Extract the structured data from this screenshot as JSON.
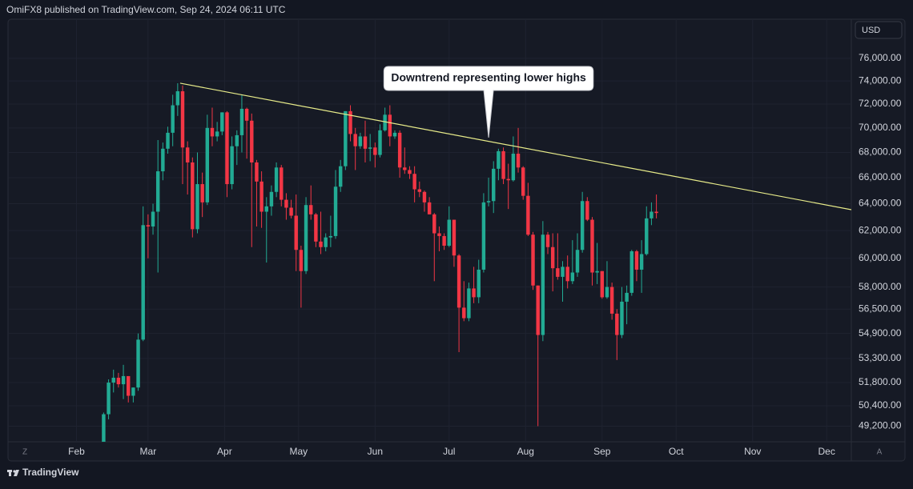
{
  "header": "OmiFX8 published on TradingView.com, Sep 24, 2024 06:11 UTC",
  "footer": "TradingView",
  "scale_buttons": [
    "Z",
    "A"
  ],
  "chart_data": {
    "type": "candlestick",
    "currency": "USD",
    "up_color": "#22ab94",
    "down_color": "#f23645",
    "log_scale": true,
    "grid": true,
    "xlim": [
      1,
      346
    ],
    "xticks": [
      {
        "value": 32,
        "label": "Feb"
      },
      {
        "value": 61,
        "label": "Mar"
      },
      {
        "value": 92,
        "label": "Apr"
      },
      {
        "value": 122,
        "label": "May"
      },
      {
        "value": 153,
        "label": "Jun"
      },
      {
        "value": 183,
        "label": "Jul"
      },
      {
        "value": 214,
        "label": "Aug"
      },
      {
        "value": 245,
        "label": "Sep"
      },
      {
        "value": 275,
        "label": "Oct"
      },
      {
        "value": 306,
        "label": "Nov"
      },
      {
        "value": 336,
        "label": "Dec"
      }
    ],
    "ylim": [
      48300,
      79600
    ],
    "yticks": [
      {
        "value": 76000,
        "label": "76,000.00"
      },
      {
        "value": 74000,
        "label": "74,000.00"
      },
      {
        "value": 72000,
        "label": "72,000.00"
      },
      {
        "value": 70000,
        "label": "70,000.00"
      },
      {
        "value": 68000,
        "label": "68,000.00"
      },
      {
        "value": 66000,
        "label": "66,000.00"
      },
      {
        "value": 64000,
        "label": "64,000.00"
      },
      {
        "value": 62000,
        "label": "62,000.00"
      },
      {
        "value": 60000,
        "label": "60,000.00"
      },
      {
        "value": 58000,
        "label": "58,000.00"
      },
      {
        "value": 56500,
        "label": "56,500.00"
      },
      {
        "value": 54900,
        "label": "54,900.00"
      },
      {
        "value": 53300,
        "label": "53,300.00"
      },
      {
        "value": 51800,
        "label": "51,800.00"
      },
      {
        "value": 50400,
        "label": "50,400.00"
      },
      {
        "value": 49200,
        "label": "49,200.00"
      }
    ],
    "x": [
      43,
      45,
      47,
      49,
      51,
      53,
      55,
      57,
      59,
      61,
      63,
      65,
      67,
      69,
      71,
      73,
      75,
      77,
      79,
      81,
      83,
      85,
      87,
      89,
      91,
      93,
      95,
      97,
      99,
      101,
      103,
      105,
      107,
      109,
      111,
      113,
      115,
      117,
      119,
      121,
      123,
      125,
      127,
      129,
      131,
      133,
      135,
      137,
      139,
      141,
      143,
      145,
      147,
      149,
      151,
      153,
      155,
      157,
      159,
      161,
      163,
      165,
      167,
      169,
      171,
      173,
      175,
      177,
      179,
      181,
      183,
      185,
      187,
      189,
      191,
      193,
      195,
      197,
      199,
      201,
      203,
      205,
      207,
      209,
      211,
      213,
      215,
      217,
      219,
      221,
      223,
      225,
      227,
      229,
      231,
      233,
      235,
      237,
      239,
      241,
      243,
      245,
      247,
      249,
      251,
      253,
      255,
      257,
      259,
      261,
      263,
      265,
      267
    ],
    "open": [
      48300,
      49900,
      51800,
      52100,
      51700,
      52200,
      51000,
      51500,
      54500,
      62400,
      62300,
      63400,
      66500,
      68300,
      69600,
      71900,
      73100,
      68400,
      67200,
      62100,
      65500,
      64100,
      70000,
      69300,
      69700,
      71300,
      65500,
      68500,
      69400,
      71600,
      70600,
      67200,
      65700,
      63400,
      63800,
      64900,
      66800,
      64300,
      63700,
      63100,
      60600,
      59100,
      63900,
      63200,
      61200,
      60800,
      61500,
      61600,
      65300,
      66900,
      71400,
      69500,
      68500,
      69300,
      68300,
      68400,
      67800,
      69800,
      71100,
      69300,
      69600,
      66800,
      66600,
      66300,
      65100,
      64900,
      64100,
      63200,
      61800,
      61600,
      60900,
      62800,
      60200,
      56600,
      55900,
      57900,
      57300,
      59200,
      64100,
      64200,
      66700,
      68100,
      65900,
      65800,
      67900,
      66800,
      64600,
      61700,
      58100,
      54800,
      61700,
      60800,
      59300,
      58700,
      59400,
      58400,
      59000,
      60600,
      64200,
      62800,
      59000,
      59100,
      57300,
      58000,
      56200,
      54800,
      57000,
      57600,
      60500,
      59200,
      60300,
      62900,
      63400
    ],
    "high": [
      50000,
      52000,
      52600,
      52400,
      52900,
      52200,
      51500,
      54900,
      63800,
      63200,
      64000,
      69000,
      68800,
      70100,
      72800,
      73800,
      73600,
      68900,
      67600,
      68000,
      66400,
      71100,
      71700,
      70500,
      71300,
      71400,
      69300,
      69800,
      72800,
      71700,
      71200,
      67400,
      66500,
      64500,
      65400,
      67200,
      67000,
      64800,
      64300,
      64700,
      60900,
      64500,
      65400,
      63300,
      63400,
      61800,
      63100,
      66600,
      67400,
      71400,
      71900,
      70000,
      69600,
      70600,
      69500,
      68800,
      70300,
      71700,
      71900,
      69800,
      69800,
      68400,
      66900,
      66900,
      65700,
      65000,
      64500,
      63300,
      62300,
      61800,
      63800,
      62800,
      60300,
      58400,
      58300,
      59400,
      59900,
      64800,
      66000,
      67300,
      68300,
      68400,
      67100,
      69300,
      70000,
      66900,
      65600,
      61900,
      58100,
      62700,
      61900,
      61800,
      61800,
      59800,
      60200,
      61300,
      61800,
      64900,
      64500,
      63000,
      61100,
      59100,
      59800,
      58300,
      56500,
      58000,
      58100,
      60600,
      60600,
      61300,
      63800,
      64100,
      64700
    ],
    "low": [
      48300,
      49600,
      51200,
      51500,
      50800,
      50600,
      50600,
      51300,
      54400,
      60000,
      61700,
      59000,
      65800,
      67900,
      68500,
      71000,
      65500,
      64700,
      61500,
      61800,
      63000,
      63900,
      68500,
      68900,
      69400,
      64500,
      65100,
      67000,
      68000,
      67500,
      60800,
      62300,
      62200,
      59700,
      63100,
      64500,
      63800,
      62800,
      62900,
      59100,
      56600,
      58900,
      62800,
      60800,
      60300,
      60500,
      60800,
      61400,
      64900,
      66600,
      68900,
      66600,
      68300,
      67200,
      67300,
      66800,
      67600,
      69700,
      68500,
      69100,
      66000,
      66300,
      65900,
      64100,
      64500,
      63400,
      63200,
      58400,
      60500,
      60600,
      60800,
      59400,
      53700,
      55700,
      55700,
      56900,
      56900,
      59000,
      63800,
      63300,
      65800,
      65500,
      63600,
      65700,
      66400,
      64300,
      61600,
      57800,
      49200,
      54400,
      60300,
      57700,
      58500,
      57000,
      57900,
      58200,
      58700,
      60400,
      62700,
      58100,
      58200,
      57200,
      57200,
      55800,
      53200,
      54600,
      55500,
      57400,
      58400,
      57600,
      60200,
      62400,
      62900
    ],
    "close": [
      49900,
      51800,
      52100,
      51700,
      52200,
      51000,
      51500,
      54500,
      62400,
      62300,
      63400,
      66500,
      68300,
      69600,
      71900,
      73100,
      68400,
      67200,
      62100,
      65500,
      64100,
      70000,
      69300,
      69700,
      71300,
      65500,
      68500,
      69400,
      71600,
      70600,
      67200,
      65700,
      63400,
      63800,
      64900,
      66800,
      64300,
      63700,
      63100,
      60600,
      59100,
      63900,
      63200,
      61200,
      60800,
      61500,
      61600,
      65300,
      66900,
      71400,
      69500,
      68500,
      69300,
      68300,
      68400,
      67800,
      69800,
      71100,
      69300,
      69600,
      66800,
      66600,
      66300,
      65100,
      64900,
      64100,
      63200,
      61800,
      61600,
      60900,
      62800,
      60200,
      56600,
      55900,
      57900,
      57300,
      59200,
      64100,
      64200,
      66700,
      68100,
      65900,
      65800,
      67900,
      66800,
      64600,
      61700,
      58100,
      54800,
      61700,
      60800,
      59300,
      58700,
      59400,
      58400,
      59000,
      60600,
      64200,
      62800,
      59000,
      59100,
      57300,
      58000,
      56200,
      54800,
      57000,
      57600,
      60500,
      59200,
      60300,
      62900,
      63400,
      63300
    ],
    "trendline": {
      "color": "#e8ec8a",
      "x": [
        74,
        346
      ],
      "values": [
        73800,
        63550
      ]
    },
    "annotation": {
      "text": "Downtrend representing lower highs",
      "x": 199,
      "value": 69200
    }
  }
}
